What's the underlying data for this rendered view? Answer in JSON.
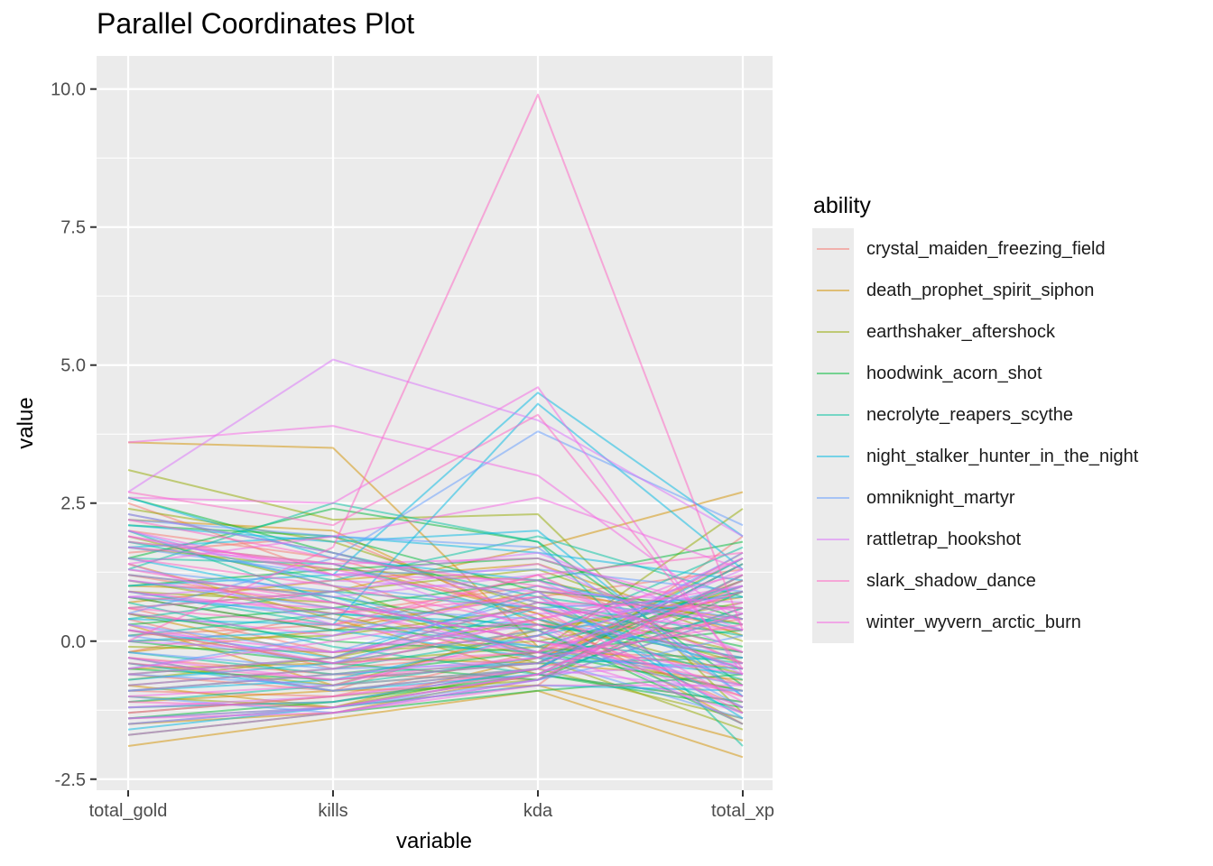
{
  "title": "Parallel Coordinates Plot",
  "chart_data": {
    "type": "line",
    "title": "Parallel Coordinates Plot",
    "xlabel": "variable",
    "ylabel": "value",
    "categories": [
      "total_gold",
      "kills",
      "kda",
      "total_xp"
    ],
    "ylim": [
      -2.7,
      10.6
    ],
    "yticks": [
      "-2.5",
      "0.0",
      "2.5",
      "5.0",
      "7.5",
      "10.0"
    ],
    "grid": true,
    "legend_title": "ability",
    "legend_position": "right",
    "series": [
      {
        "name": "crystal_maiden_freezing_field",
        "color": "#F8766D",
        "lines": [
          [
            1.2,
            0.6,
            -0.3,
            0.9
          ],
          [
            0.4,
            -0.5,
            -0.2,
            1.1
          ],
          [
            -0.6,
            -0.9,
            0.3,
            0.2
          ],
          [
            2.0,
            1.5,
            0.5,
            -0.8
          ],
          [
            -1.2,
            -1.1,
            -0.5,
            1.6
          ],
          [
            0.8,
            0.2,
            1.2,
            -0.4
          ],
          [
            -0.3,
            -0.6,
            -0.7,
            0.5
          ],
          [
            1.6,
            1.9,
            0.4,
            -1.2
          ],
          [
            0.1,
            0.3,
            0.8,
            1.3
          ],
          [
            -0.9,
            -1.0,
            -0.2,
            -0.3
          ],
          [
            2.5,
            1.2,
            -0.1,
            0.4
          ],
          [
            -1.4,
            -1.2,
            -0.8,
            1.9
          ],
          [
            0.6,
            -0.2,
            0.1,
            -1.0
          ],
          [
            -0.2,
            0.5,
            1.0,
            0.2
          ]
        ]
      },
      {
        "name": "death_prophet_spirit_siphon",
        "color": "#D39200",
        "lines": [
          [
            3.6,
            3.5,
            -0.1,
            -0.5
          ],
          [
            -1.9,
            -1.4,
            -0.9,
            -2.1
          ],
          [
            1.0,
            0.9,
            1.7,
            2.7
          ],
          [
            -0.5,
            -0.4,
            0.2,
            0.8
          ],
          [
            0.3,
            -0.8,
            -0.5,
            1.4
          ],
          [
            1.8,
            1.4,
            0.5,
            -1.5
          ],
          [
            -1.1,
            -0.9,
            -0.8,
            -1.8
          ],
          [
            0.7,
            1.1,
            1.4,
            0.1
          ],
          [
            2.2,
            2.0,
            0.3,
            -0.2
          ],
          [
            -0.8,
            -1.2,
            -0.3,
            1.0
          ],
          [
            1.4,
            0.4,
            -0.6,
            -1.1
          ],
          [
            -0.2,
            0.2,
            0.9,
            0.4
          ],
          [
            0.5,
            -0.3,
            -0.4,
            -0.7
          ],
          [
            -1.5,
            -1.3,
            -0.6,
            0.6
          ]
        ]
      },
      {
        "name": "earthshaker_aftershock",
        "color": "#93AA00",
        "lines": [
          [
            3.1,
            2.2,
            2.3,
            -1.3
          ],
          [
            0.9,
            0.7,
            -0.2,
            2.4
          ],
          [
            -0.7,
            -0.3,
            0.4,
            -0.6
          ],
          [
            1.7,
            1.3,
            1.1,
            0.3
          ],
          [
            -1.3,
            -1.0,
            -0.7,
            1.2
          ],
          [
            0.2,
            -0.4,
            -0.1,
            -0.9
          ],
          [
            2.4,
            1.8,
            0.6,
            -0.4
          ],
          [
            -0.4,
            -0.8,
            0.2,
            0.9
          ],
          [
            1.1,
            0.5,
            -0.4,
            1.5
          ],
          [
            -1.0,
            -1.2,
            -0.5,
            -1.4
          ],
          [
            0.6,
            0.9,
            1.3,
            0.0
          ],
          [
            -0.1,
            -0.2,
            0.0,
            0.7
          ],
          [
            1.9,
            1.0,
            -0.3,
            -1.6
          ],
          [
            0.0,
            0.1,
            0.6,
            -0.2
          ]
        ]
      },
      {
        "name": "hoodwink_acorn_shot",
        "color": "#00BA38",
        "lines": [
          [
            1.5,
            2.4,
            1.8,
            -0.8
          ],
          [
            -0.5,
            -0.7,
            -0.4,
            1.1
          ],
          [
            0.8,
            0.2,
            0.3,
            -0.3
          ],
          [
            2.1,
            1.9,
            0.9,
            0.6
          ],
          [
            -1.4,
            -1.1,
            -0.6,
            -1.2
          ],
          [
            0.3,
            0.6,
            1.1,
            1.8
          ],
          [
            -0.9,
            -0.6,
            -0.2,
            0.2
          ],
          [
            1.2,
            0.8,
            0.2,
            -1.5
          ],
          [
            0.0,
            -0.4,
            -0.7,
            0.9
          ],
          [
            2.6,
            1.6,
            0.7,
            -0.1
          ],
          [
            -0.3,
            -0.9,
            -0.5,
            1.4
          ],
          [
            1.0,
            1.3,
            1.5,
            0.4
          ],
          [
            -1.7,
            -1.3,
            -0.9,
            -0.6
          ],
          [
            0.5,
            0.0,
            -0.2,
            -0.9
          ]
        ]
      },
      {
        "name": "necrolyte_reapers_scythe",
        "color": "#00C19F",
        "lines": [
          [
            1.3,
            2.5,
            1.8,
            -1.9
          ],
          [
            -0.8,
            -0.5,
            0.1,
            1.7
          ],
          [
            0.4,
            0.9,
            0.6,
            -0.5
          ],
          [
            2.3,
            1.6,
            0.8,
            0.3
          ],
          [
            -1.5,
            -1.2,
            -0.6,
            -1.1
          ],
          [
            0.9,
            0.3,
            -0.1,
            1.0
          ],
          [
            -0.2,
            -0.6,
            -0.4,
            -0.3
          ],
          [
            1.8,
            1.1,
            1.9,
            0.8
          ],
          [
            0.1,
            0.5,
            0.2,
            -1.3
          ],
          [
            -1.1,
            -0.8,
            -0.3,
            0.5
          ],
          [
            0.7,
            -0.1,
            -0.6,
            1.2
          ],
          [
            1.5,
            1.4,
            0.4,
            -0.7
          ],
          [
            -0.6,
            -0.3,
            0.7,
            0.1
          ],
          [
            2.0,
            0.7,
            0.0,
            -0.4
          ]
        ]
      },
      {
        "name": "night_stalker_hunter_in_the_night",
        "color": "#00B9E3",
        "lines": [
          [
            1.0,
            1.2,
            4.5,
            1.9
          ],
          [
            0.4,
            0.3,
            4.3,
            1.3
          ],
          [
            2.1,
            1.8,
            2.0,
            -1.0
          ],
          [
            -0.7,
            -0.4,
            0.6,
            0.8
          ],
          [
            1.5,
            0.8,
            -0.2,
            -0.6
          ],
          [
            -1.2,
            -1.1,
            -0.5,
            1.5
          ],
          [
            0.2,
            -0.3,
            0.9,
            -1.4
          ],
          [
            2.6,
            1.5,
            1.1,
            0.2
          ],
          [
            -0.4,
            -0.9,
            -0.6,
            0.6
          ],
          [
            0.8,
            0.5,
            0.3,
            -0.2
          ],
          [
            -1.6,
            -1.2,
            -0.8,
            -0.9
          ],
          [
            1.7,
            1.9,
            1.6,
            1.1
          ],
          [
            0.0,
            0.2,
            -0.3,
            -0.5
          ],
          [
            -0.9,
            -0.7,
            0.1,
            0.9
          ]
        ]
      },
      {
        "name": "omniknight_martyr",
        "color": "#619CFF",
        "lines": [
          [
            0.5,
            1.5,
            3.8,
            2.1
          ],
          [
            2.2,
            1.9,
            1.7,
            -1.0
          ],
          [
            -0.6,
            -0.8,
            -0.5,
            1.4
          ],
          [
            1.1,
            0.6,
            0.4,
            -0.3
          ],
          [
            -1.4,
            -1.2,
            -0.7,
            0.5
          ],
          [
            0.3,
            -0.2,
            0.8,
            -1.2
          ],
          [
            1.7,
            1.2,
            1.3,
            0.9
          ],
          [
            -0.2,
            -0.5,
            -0.4,
            1.6
          ],
          [
            0.9,
            0.4,
            -0.1,
            -0.8
          ],
          [
            -1.0,
            -1.3,
            -0.7,
            0.1
          ],
          [
            2.0,
            1.0,
            0.6,
            -0.5
          ],
          [
            -0.5,
            0.1,
            1.0,
            0.4
          ],
          [
            1.3,
            0.9,
            -0.3,
            -1.4
          ],
          [
            0.1,
            -0.4,
            0.2,
            1.0
          ]
        ]
      },
      {
        "name": "rattletrap_hookshot",
        "color": "#DB72FB",
        "lines": [
          [
            2.7,
            5.1,
            4.0,
            1.9
          ],
          [
            -1.5,
            -1.2,
            -0.6,
            1.0
          ],
          [
            1.2,
            0.8,
            1.2,
            -0.6
          ],
          [
            0.3,
            -0.4,
            0.5,
            0.6
          ],
          [
            1.8,
            1.4,
            0.2,
            -1.2
          ],
          [
            -0.9,
            -0.6,
            -0.3,
            1.3
          ],
          [
            0.6,
            0.9,
            1.4,
            -0.2
          ],
          [
            2.3,
            1.6,
            0.7,
            0.4
          ],
          [
            -0.3,
            -0.9,
            -0.5,
            -0.9
          ],
          [
            1.4,
            0.3,
            -0.2,
            1.5
          ],
          [
            -1.2,
            -1.0,
            -0.6,
            -0.4
          ],
          [
            0.8,
            1.1,
            0.9,
            0.7
          ],
          [
            0.0,
            -0.2,
            0.3,
            -1.5
          ],
          [
            1.9,
            1.2,
            1.6,
            0.2
          ]
        ]
      },
      {
        "name": "slark_shadow_dance",
        "color": "#FF61C3",
        "lines": [
          [
            0.0,
            1.7,
            9.9,
            0.2
          ],
          [
            2.7,
            2.1,
            4.1,
            -0.5
          ],
          [
            -0.8,
            -0.5,
            0.4,
            1.2
          ],
          [
            1.3,
            0.7,
            0.0,
            -0.8
          ],
          [
            -1.3,
            -1.0,
            -0.5,
            0.5
          ],
          [
            0.6,
            0.3,
            1.2,
            1.6
          ],
          [
            1.9,
            1.3,
            0.6,
            -1.3
          ],
          [
            -0.4,
            -0.7,
            -0.3,
            0.3
          ],
          [
            0.9,
            0.5,
            0.8,
            -0.5
          ],
          [
            -1.1,
            -1.2,
            -0.6,
            1.1
          ],
          [
            2.2,
            1.5,
            1.0,
            -0.2
          ],
          [
            0.2,
            -0.4,
            -0.2,
            0.9
          ],
          [
            1.5,
            1.0,
            0.3,
            -1.0
          ],
          [
            -0.6,
            -0.3,
            0.7,
            0.6
          ]
        ]
      },
      {
        "name": "winter_wyvern_arctic_burn",
        "color": "#F564E3",
        "lines": [
          [
            3.6,
            3.9,
            3.0,
            0.3
          ],
          [
            2.6,
            2.5,
            4.6,
            -0.6
          ],
          [
            1.4,
            1.9,
            2.6,
            1.3
          ],
          [
            -1.7,
            -1.3,
            -0.7,
            1.2
          ],
          [
            0.5,
            0.1,
            0.9,
            -1.1
          ],
          [
            -0.3,
            -0.7,
            -0.4,
            0.7
          ],
          [
            2.0,
            1.2,
            1.1,
            -0.4
          ],
          [
            -1.0,
            -0.8,
            0.1,
            1.5
          ],
          [
            0.8,
            0.6,
            -0.2,
            -1.3
          ],
          [
            1.7,
            1.4,
            1.5,
            0.5
          ],
          [
            -1.4,
            -1.3,
            -0.8,
            -0.8
          ],
          [
            0.2,
            -0.2,
            0.4,
            1.0
          ],
          [
            1.1,
            0.7,
            0.0,
            -0.6
          ],
          [
            -0.5,
            0.0,
            0.6,
            0.2
          ]
        ]
      }
    ]
  }
}
